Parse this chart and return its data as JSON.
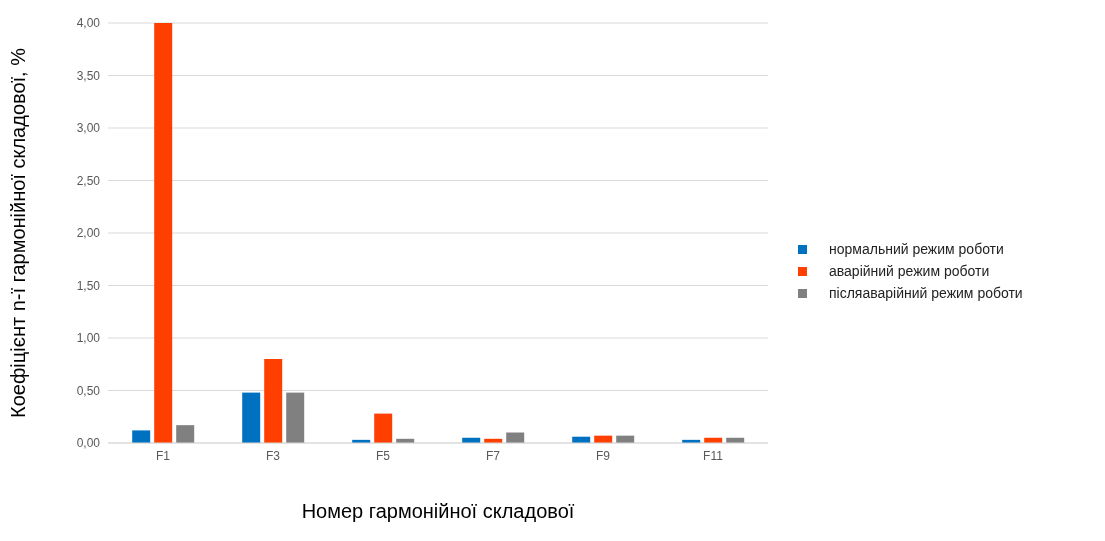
{
  "chart_data": {
    "type": "bar",
    "xlabel": "Номер гармонійної складової",
    "ylabel": "Коефіцієнт n-ї гармонійної складової, %",
    "categories": [
      "F1",
      "F3",
      "F5",
      "F7",
      "F9",
      "F11"
    ],
    "series": [
      {
        "name": "нормальний режим роботи",
        "color": "#0070c0",
        "values": [
          0.12,
          0.48,
          0.03,
          0.05,
          0.06,
          0.03
        ]
      },
      {
        "name": "аварійний режим роботи",
        "color": "#ff3f00",
        "values": [
          4.0,
          0.8,
          0.28,
          0.04,
          0.07,
          0.05
        ]
      },
      {
        "name": "післяаварійний режим роботи",
        "color": "#808080",
        "values": [
          0.17,
          0.48,
          0.04,
          0.1,
          0.07,
          0.05
        ]
      }
    ],
    "ylim": [
      0,
      4
    ],
    "yticks": [
      {
        "value": 0,
        "label": "0,00"
      },
      {
        "value": 0.5,
        "label": "0,50"
      },
      {
        "value": 1,
        "label": "1,00"
      },
      {
        "value": 1.5,
        "label": "1,50"
      },
      {
        "value": 2,
        "label": "2,00"
      },
      {
        "value": 2.5,
        "label": "2,50"
      },
      {
        "value": 3,
        "label": "3,00"
      },
      {
        "value": 3.5,
        "label": "3,50"
      },
      {
        "value": 4,
        "label": "4,00"
      }
    ],
    "grid": "y",
    "legend": "right"
  }
}
